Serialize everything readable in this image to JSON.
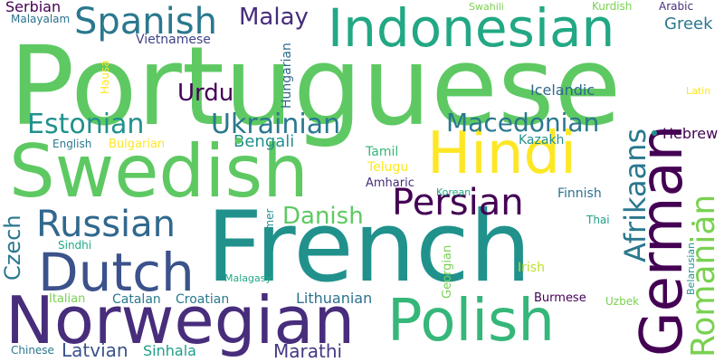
{
  "words": [
    {
      "text": "Portuguese",
      "color": "#5ec962"
    },
    {
      "text": "French",
      "color": "#21918c"
    },
    {
      "text": "Swedish",
      "color": "#5ec962"
    },
    {
      "text": "Norwegian",
      "color": "#472d7b"
    },
    {
      "text": "Hindi",
      "color": "#fde725"
    },
    {
      "text": "German",
      "color": "#440154"
    },
    {
      "text": "Indonesian",
      "color": "#22a884"
    },
    {
      "text": "Polish",
      "color": "#35b779"
    },
    {
      "text": "Dutch",
      "color": "#3b528b"
    },
    {
      "text": "Spanish",
      "color": "#2a788e"
    },
    {
      "text": "Russian",
      "color": "#31688e"
    },
    {
      "text": "Persian",
      "color": "#440154"
    },
    {
      "text": "Romanian",
      "color": "#7ad151"
    },
    {
      "text": "Afrikaans",
      "color": "#2a788e"
    },
    {
      "text": "Estonian",
      "color": "#21918c"
    },
    {
      "text": "Ukrainian",
      "color": "#2a788e"
    },
    {
      "text": "Macedonian",
      "color": "#2a788e"
    },
    {
      "text": "Malay",
      "color": "#472d7b"
    },
    {
      "text": "Urdu",
      "color": "#440154"
    },
    {
      "text": "Danish",
      "color": "#5ec962"
    },
    {
      "text": "Czech",
      "color": "#2a788e"
    },
    {
      "text": "Latvian",
      "color": "#3b528b"
    },
    {
      "text": "Sinhala",
      "color": "#1f9e89"
    },
    {
      "text": "Marathi",
      "color": "#443983"
    },
    {
      "text": "Bengali",
      "color": "#21918c"
    },
    {
      "text": "Greek",
      "color": "#2a788e"
    },
    {
      "text": "Icelandic",
      "color": "#31688e"
    },
    {
      "text": "Hebrew",
      "color": "#440154"
    },
    {
      "text": "Lithuanian",
      "color": "#2c728e"
    },
    {
      "text": "Serbian",
      "color": "#440154"
    },
    {
      "text": "Vietnamese",
      "color": "#414487"
    },
    {
      "text": "Hungarian",
      "color": "#31688e"
    },
    {
      "text": "Kazakh",
      "color": "#21918c"
    },
    {
      "text": "Tamil",
      "color": "#35b779"
    },
    {
      "text": "Telugu",
      "color": "#fde725"
    },
    {
      "text": "Amharic",
      "color": "#472d7b"
    },
    {
      "text": "Finnish",
      "color": "#2c728e"
    },
    {
      "text": "Irish",
      "color": "#bddf26"
    },
    {
      "text": "Georgian",
      "color": "#7ad151"
    },
    {
      "text": "Bulgarian",
      "color": "#fde725"
    },
    {
      "text": "English",
      "color": "#2a788e"
    },
    {
      "text": "Malayalam",
      "color": "#2c728e"
    },
    {
      "text": "Swahili",
      "color": "#7ad151"
    },
    {
      "text": "Kurdish",
      "color": "#7ad151"
    },
    {
      "text": "Arabic",
      "color": "#472d7b"
    },
    {
      "text": "Hausa",
      "color": "#fde725"
    },
    {
      "text": "Latin",
      "color": "#fde725"
    },
    {
      "text": "Korean",
      "color": "#22a884"
    },
    {
      "text": "Thai",
      "color": "#1f9e89"
    },
    {
      "text": "Belarusian",
      "color": "#21918c"
    },
    {
      "text": "Sindhi",
      "color": "#22a884"
    },
    {
      "text": "Khmer",
      "color": "#21918c"
    },
    {
      "text": "Malagasy",
      "color": "#22a884"
    },
    {
      "text": "Italian",
      "color": "#7ad151"
    },
    {
      "text": "Catalan",
      "color": "#2a788e"
    },
    {
      "text": "Croatian",
      "color": "#2a788e"
    },
    {
      "text": "Burmese",
      "color": "#440154"
    },
    {
      "text": "Uzbek",
      "color": "#7ad151"
    },
    {
      "text": "Chinese",
      "color": "#2a788e"
    }
  ]
}
